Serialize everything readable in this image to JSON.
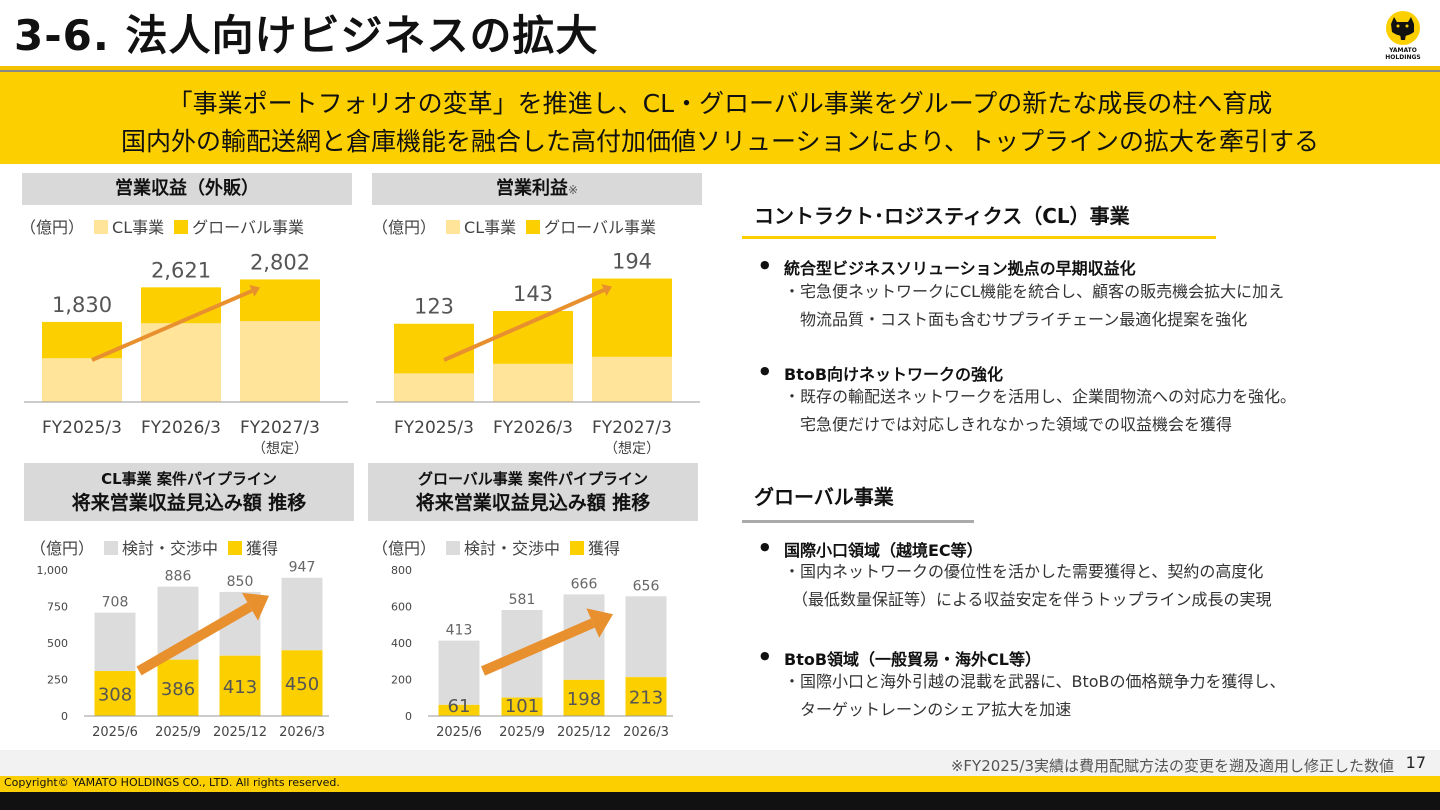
{
  "title": "3-6. 法人向けビジネスの拡大",
  "logo": {
    "text_line1": "YAMATO",
    "text_line2": "HOLDINGS"
  },
  "banner": {
    "line1": "「事業ポートフォリオの変革」を推進し、CL・グローバル事業をグループの新たな成長の柱へ育成",
    "line2": "国内外の輸配送網と倉庫機能を融合した高付加価値ソリューションにより、トップラインの拡大を牽引する"
  },
  "colors": {
    "yellow": "#fcd000",
    "light_yellow": "#ffe49a",
    "gray_bar": "#dcdcdc",
    "arrow": "#e8902e"
  },
  "panels": {
    "revenue": {
      "title": "営業収益（外販）",
      "unit": "（億円）",
      "legend": [
        "CL事業",
        "グローバル事業"
      ]
    },
    "profit": {
      "title": "営業利益",
      "title_note": "※",
      "unit": "（億円）",
      "legend": [
        "CL事業",
        "グローバル事業"
      ]
    },
    "cl_pipeline": {
      "title_line1": "CL事業 案件パイプライン",
      "title_line2": "将来営業収益見込み額 推移",
      "unit": "（億円）",
      "legend": [
        "検討・交渉中",
        "獲得"
      ]
    },
    "global_pipeline": {
      "title_line1": "グローバル事業 案件パイプライン",
      "title_line2": "将来営業収益見込み額 推移",
      "unit": "（億円）",
      "legend": [
        "検討・交渉中",
        "獲得"
      ]
    }
  },
  "chart_data": [
    {
      "type": "bar",
      "stacked": true,
      "categories": [
        "FY2025/3",
        "FY2026/3",
        "FY2027/3"
      ],
      "category_notes": [
        "",
        "",
        "（想定）"
      ],
      "series": [
        {
          "name": "CL事業",
          "values": [
            1000,
            1800,
            1850
          ]
        },
        {
          "name": "グローバル事業",
          "values": [
            830,
            821,
            952
          ]
        }
      ],
      "totals": [
        1830,
        2621,
        2802
      ],
      "total_labels": [
        "1,830",
        "2,621",
        "2,802"
      ],
      "ylim": [
        0,
        3200
      ],
      "grid": false
    },
    {
      "type": "bar",
      "stacked": true,
      "categories": [
        "FY2025/3",
        "FY2026/3",
        "FY2027/3"
      ],
      "category_notes": [
        "",
        "",
        "（想定）"
      ],
      "series": [
        {
          "name": "CL事業",
          "values": [
            45,
            60,
            71
          ]
        },
        {
          "name": "グローバル事業",
          "values": [
            78,
            83,
            123
          ]
        }
      ],
      "totals": [
        123,
        143,
        194
      ],
      "total_labels": [
        "123",
        "143",
        "194"
      ],
      "ylim": [
        0,
        220
      ],
      "grid": false
    },
    {
      "type": "bar",
      "stacked": true,
      "categories": [
        "2025/6",
        "2025/9",
        "2025/12",
        "2026/3"
      ],
      "series": [
        {
          "name": "獲得",
          "values": [
            308,
            386,
            413,
            450
          ]
        },
        {
          "name": "検討・交渉中",
          "values": [
            400,
            500,
            437,
            497
          ]
        }
      ],
      "totals": [
        708,
        886,
        850,
        947
      ],
      "ylim": [
        0,
        1000
      ],
      "y_ticks": [
        0,
        250,
        500,
        750,
        1000
      ],
      "y_tick_labels": [
        "0",
        "250",
        "500",
        "750",
        "1,000"
      ]
    },
    {
      "type": "bar",
      "stacked": true,
      "categories": [
        "2025/6",
        "2025/9",
        "2025/12",
        "2026/3"
      ],
      "series": [
        {
          "name": "獲得",
          "values": [
            61,
            101,
            198,
            213
          ]
        },
        {
          "name": "検討・交渉中",
          "values": [
            352,
            480,
            468,
            443
          ]
        }
      ],
      "totals": [
        413,
        581,
        666,
        656
      ],
      "ylim": [
        0,
        800
      ],
      "y_ticks": [
        0,
        200,
        400,
        600,
        800
      ],
      "y_tick_labels": [
        "0",
        "200",
        "400",
        "600",
        "800"
      ]
    }
  ],
  "right": {
    "cl": {
      "heading": "コントラクト･ロジスティクス（CL）事業",
      "items": [
        {
          "head": "統合型ビジネスソリューション拠点の早期収益化",
          "lines": [
            "・宅急便ネットワークにCL機能を統合し、顧客の販売機会拡大に加え",
            "　物流品質・コスト面も含むサプライチェーン最適化提案を強化"
          ]
        },
        {
          "head": "BtoB向けネットワークの強化",
          "lines": [
            "・既存の輸配送ネットワークを活用し、企業間物流への対応力を強化。",
            "　宅急便だけでは対応しきれなかった領域での収益機会を獲得"
          ]
        }
      ]
    },
    "global": {
      "heading": "グローバル事業",
      "items": [
        {
          "head": "国際小口領域（越境EC等）",
          "lines": [
            "・国内ネットワークの優位性を活かした需要獲得と、契約の高度化",
            "　（最低数量保証等）による収益安定を伴うトップライン成長の実現"
          ]
        },
        {
          "head": "BtoB領域（一般貿易・海外CL等）",
          "lines": [
            "・国際小口と海外引越の混載を武器に、BtoBの価格競争力を獲得し、",
            "　ターゲットレーンのシェア拡大を加速"
          ]
        }
      ]
    }
  },
  "footnote": "※FY2025/3実績は費用配賦方法の変更を遡及適用し修正した数値",
  "page_number": "17",
  "copyright": "Copyright© YAMATO HOLDINGS CO., LTD. All rights reserved."
}
